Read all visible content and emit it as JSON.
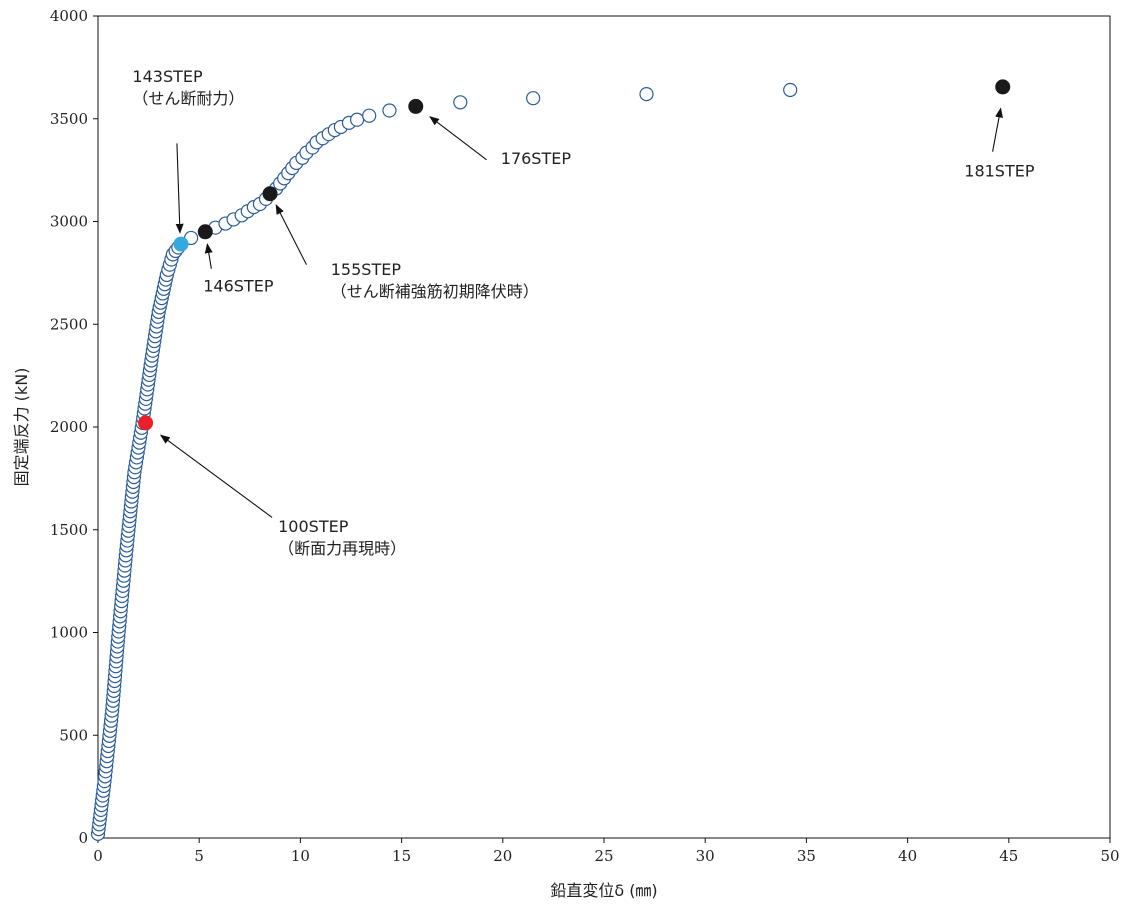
{
  "chart_data": {
    "type": "scatter",
    "title": "",
    "xlabel": "鉛直変位δ (㎜)",
    "ylabel": "固定端反力 (kN)",
    "xlim": [
      0,
      50
    ],
    "ylim": [
      0,
      4000
    ],
    "xticks": [
      "0",
      "5",
      "10",
      "15",
      "20",
      "25",
      "30",
      "35",
      "40",
      "45",
      "50"
    ],
    "yticks": [
      "0",
      "500",
      "1000",
      "1500",
      "2000",
      "2500",
      "3000",
      "3500",
      "4000"
    ],
    "grid": false,
    "legend": "none",
    "series_style": {
      "color": "#2a5c9a",
      "marker": "open-circle"
    },
    "curve_anchors": [
      [
        0,
        20
      ],
      [
        0.35,
        300
      ],
      [
        0.7,
        620
      ],
      [
        1.0,
        980
      ],
      [
        1.4,
        1400
      ],
      [
        1.8,
        1780
      ],
      [
        2.2,
        2020
      ],
      [
        2.6,
        2300
      ],
      [
        3.0,
        2560
      ],
      [
        3.4,
        2740
      ],
      [
        3.7,
        2840
      ],
      [
        4.1,
        2890
      ]
    ],
    "points": [
      [
        4.6,
        2920
      ],
      [
        5.3,
        2950
      ],
      [
        5.8,
        2970
      ],
      [
        6.3,
        2990
      ],
      [
        6.7,
        3010
      ],
      [
        7.1,
        3030
      ],
      [
        7.4,
        3050
      ],
      [
        7.7,
        3070
      ],
      [
        8.0,
        3085
      ],
      [
        8.3,
        3110
      ],
      [
        8.5,
        3135
      ],
      [
        8.8,
        3160
      ],
      [
        9.0,
        3185
      ],
      [
        9.2,
        3210
      ],
      [
        9.4,
        3235
      ],
      [
        9.6,
        3260
      ],
      [
        9.8,
        3285
      ],
      [
        10.1,
        3310
      ],
      [
        10.3,
        3335
      ],
      [
        10.6,
        3360
      ],
      [
        10.8,
        3385
      ],
      [
        11.1,
        3405
      ],
      [
        11.4,
        3425
      ],
      [
        11.7,
        3445
      ],
      [
        12.0,
        3460
      ],
      [
        12.4,
        3480
      ],
      [
        12.8,
        3495
      ],
      [
        13.4,
        3515
      ],
      [
        14.4,
        3540
      ],
      [
        15.7,
        3560
      ],
      [
        17.9,
        3580
      ],
      [
        21.5,
        3600
      ],
      [
        27.1,
        3620
      ],
      [
        34.2,
        3640
      ],
      [
        44.7,
        3655
      ]
    ],
    "highlights": [
      {
        "x": 2.35,
        "y": 2020,
        "color": "#e8202a"
      },
      {
        "x": 4.1,
        "y": 2890,
        "color": "#36a8e0"
      },
      {
        "x": 5.3,
        "y": 2950,
        "color": "#1a1a1a"
      },
      {
        "x": 8.5,
        "y": 3135,
        "color": "#1a1a1a"
      },
      {
        "x": 15.7,
        "y": 3560,
        "color": "#1a1a1a"
      },
      {
        "x": 44.7,
        "y": 3655,
        "color": "#1a1a1a"
      }
    ],
    "annotations": [
      {
        "lines": [
          "143STEP",
          "（せん断耐力）"
        ],
        "text_x": 1.7,
        "text_y": 3680,
        "from": [
          3.9,
          3380
        ],
        "to": [
          4.05,
          2945
        ]
      },
      {
        "lines": [
          "146STEP"
        ],
        "text_x": 5.2,
        "text_y": 2660,
        "from": [
          5.6,
          2770
        ],
        "to": [
          5.4,
          2890
        ]
      },
      {
        "lines": [
          "155STEP",
          "（せん断補強筋初期降伏時）"
        ],
        "text_x": 11.5,
        "text_y": 2740,
        "from": [
          10.3,
          2790
        ],
        "to": [
          8.8,
          3080
        ]
      },
      {
        "lines": [
          "100STEP",
          "（断面力再現時）"
        ],
        "text_x": 8.9,
        "text_y": 1490,
        "from": [
          8.6,
          1560
        ],
        "to": [
          3.1,
          1960
        ]
      },
      {
        "lines": [
          "176STEP"
        ],
        "text_x": 19.9,
        "text_y": 3280,
        "from": [
          19.2,
          3300
        ],
        "to": [
          16.4,
          3510
        ]
      },
      {
        "lines": [
          "181STEP"
        ],
        "text_x": 42.8,
        "text_y": 3220,
        "from": [
          44.2,
          3340
        ],
        "to": [
          44.6,
          3550
        ]
      }
    ]
  }
}
